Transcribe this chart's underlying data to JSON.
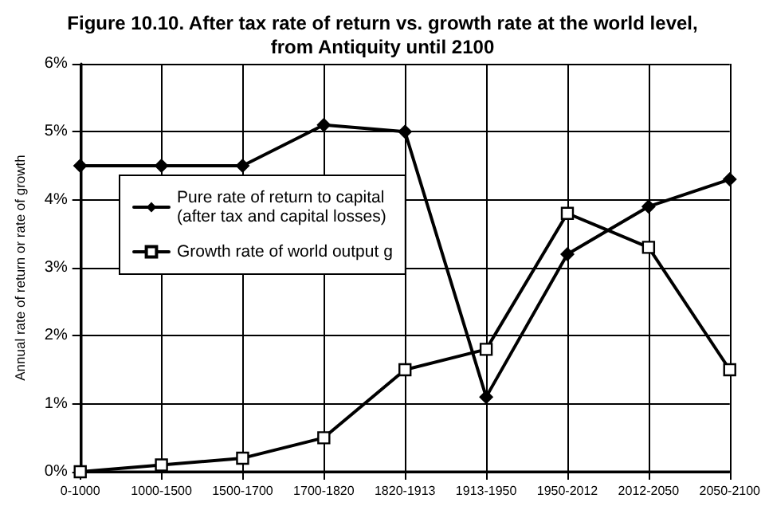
{
  "chart_data": {
    "type": "line",
    "title": "Figure 10.10. After tax rate of return vs. growth rate at the world level,\nfrom Antiquity until 2100",
    "ylabel": "Annual rate of return or rate of growth",
    "categories": [
      "0-1000",
      "1000-1500",
      "1500-1700",
      "1700-1820",
      "1820-1913",
      "1913-1950",
      "1950-2012",
      "2012-2050",
      "2050-2100"
    ],
    "series": [
      {
        "name": "Pure rate of return to capital\n(after tax and capital losses)",
        "color": "#000000",
        "marker": "diamond",
        "values": [
          4.5,
          4.5,
          4.5,
          5.1,
          5.0,
          1.1,
          3.2,
          3.9,
          4.3
        ]
      },
      {
        "name": "Growth rate of world output g",
        "color": "#000000",
        "marker": "square",
        "values": [
          0.0,
          0.1,
          0.2,
          0.5,
          1.5,
          1.8,
          3.8,
          3.3,
          1.5
        ]
      }
    ],
    "ylim": [
      0,
      6
    ],
    "yticks": [
      {
        "value": 0,
        "label": "0%"
      },
      {
        "value": 1,
        "label": "1%"
      },
      {
        "value": 2,
        "label": "2%"
      },
      {
        "value": 3,
        "label": "3%"
      },
      {
        "value": 4,
        "label": "4%"
      },
      {
        "value": 5,
        "label": "5%"
      },
      {
        "value": 6,
        "label": "6%"
      }
    ],
    "grid": true,
    "legend": "left",
    "line_style": "solid"
  }
}
